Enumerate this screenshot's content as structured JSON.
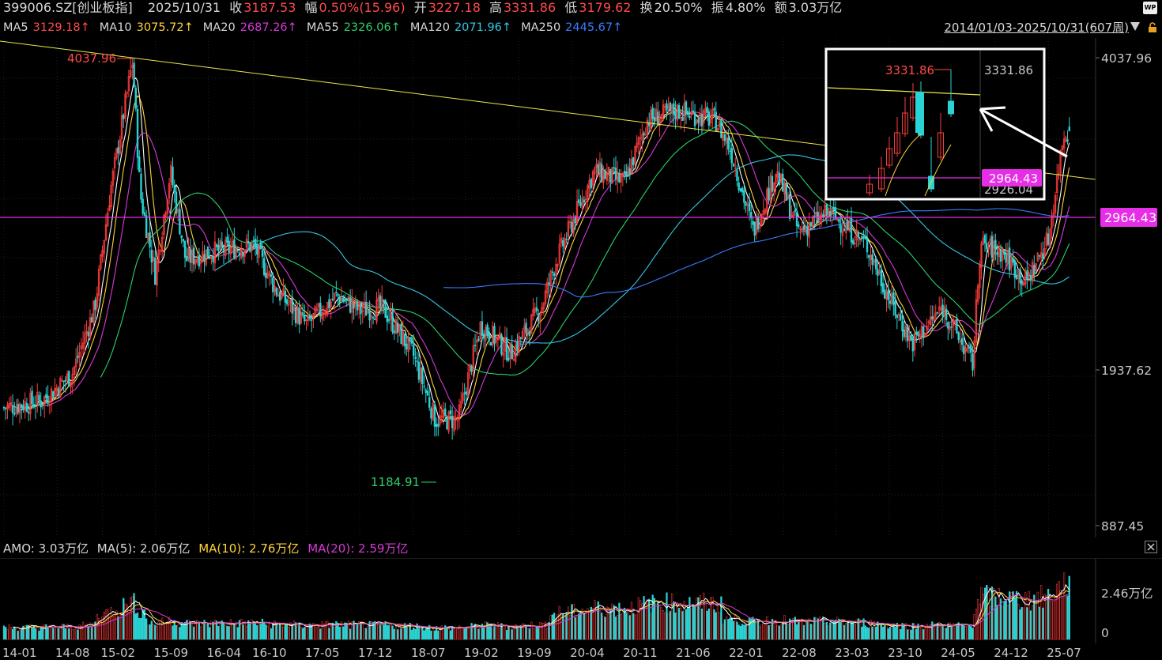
{
  "header": {
    "symbol": "399006.SZ[创业板指]",
    "date": "2025/10/31",
    "close_label": "收",
    "close_value": "3187.53",
    "change_label": "幅",
    "change_value": "0.50%(15.96)",
    "open_label": "开",
    "open_value": "3227.18",
    "high_label": "高",
    "high_value": "3331.86",
    "low_label": "低",
    "low_value": "3179.62",
    "turnover_label": "换",
    "turnover_value": "20.50%",
    "amplitude_label": "振",
    "amplitude_value": "4.80%",
    "amount_label": "额",
    "amount_value": "3.03万亿"
  },
  "ma_legend": [
    {
      "label": "MA5",
      "value": "3129.18↑",
      "color": "#ff4a4a"
    },
    {
      "label": "MA10",
      "value": "3075.72↑",
      "color": "#ffd23a"
    },
    {
      "label": "MA20",
      "value": "2687.26↑",
      "color": "#d63ad6"
    },
    {
      "label": "MA55",
      "value": "2326.06↑",
      "color": "#2bd06a"
    },
    {
      "label": "MA120",
      "value": "2071.96↑",
      "color": "#34c6e6"
    },
    {
      "label": "MA250",
      "value": "2445.67↑",
      "color": "#3a7bff"
    }
  ],
  "date_range": "2014/01/03-2025/10/31(607周)",
  "y_axis_labels": [
    "4037.96",
    "1937.62",
    "887.45"
  ],
  "price_tag": "2964.43",
  "peak_label": "4037.96",
  "trough_label": "1184.91",
  "inset": {
    "high_label": "3331.86",
    "axis_top": "3331.86",
    "axis_mid": "2964.43",
    "axis_bottom": "2926.04"
  },
  "volume": {
    "title": "AMO: 3.03万亿",
    "ma5": "MA(5): 2.06万亿",
    "ma10": "MA(10): 2.76万亿",
    "ma20": "MA(20): 2.59万亿",
    "axis_top": "2.46万亿",
    "axis_bottom": "0"
  },
  "x_ticks": [
    "14-01",
    "14-08",
    "15-02",
    "15-09",
    "16-04",
    "16-10",
    "17-05",
    "17-12",
    "18-07",
    "19-02",
    "19-09",
    "20-04",
    "20-11",
    "21-06",
    "22-01",
    "22-08",
    "23-03",
    "23-10",
    "24-05",
    "24-12",
    "25-07"
  ],
  "colors": {
    "up": "#ff3b3b",
    "down": "#2ad4d4",
    "trendline": "#e8e84a",
    "hline": "#e62ee6",
    "tag_bg": "#e62ee6"
  },
  "chart_data": {
    "type": "candlestick",
    "title": "",
    "period": "weekly",
    "ylim": [
      887.45,
      4037.96
    ],
    "annotations": {
      "high": 4037.96,
      "low": 1184.91,
      "horizontal_line": 2964.43
    },
    "close_path": [
      {
        "x": "2014-01",
        "y": 1300
      },
      {
        "x": "2014-06",
        "y": 1330
      },
      {
        "x": "2014-10",
        "y": 1450
      },
      {
        "x": "2015-01",
        "y": 1800
      },
      {
        "x": "2015-03",
        "y": 2600
      },
      {
        "x": "2015-06",
        "y": 4000
      },
      {
        "x": "2015-07",
        "y": 2600
      },
      {
        "x": "2015-09",
        "y": 2000
      },
      {
        "x": "2015-11",
        "y": 2800
      },
      {
        "x": "2016-01",
        "y": 2100
      },
      {
        "x": "2016-04",
        "y": 2150
      },
      {
        "x": "2016-10",
        "y": 2200
      },
      {
        "x": "2017-01",
        "y": 1900
      },
      {
        "x": "2017-05",
        "y": 1700
      },
      {
        "x": "2017-09",
        "y": 1870
      },
      {
        "x": "2017-12",
        "y": 1780
      },
      {
        "x": "2018-03",
        "y": 1800
      },
      {
        "x": "2018-07",
        "y": 1550
      },
      {
        "x": "2018-10",
        "y": 1250
      },
      {
        "x": "2019-01",
        "y": 1250
      },
      {
        "x": "2019-04",
        "y": 1700
      },
      {
        "x": "2019-08",
        "y": 1550
      },
      {
        "x": "2019-12",
        "y": 1800
      },
      {
        "x": "2020-02",
        "y": 2100
      },
      {
        "x": "2020-07",
        "y": 2800
      },
      {
        "x": "2020-11",
        "y": 2700
      },
      {
        "x": "2021-02",
        "y": 3300
      },
      {
        "x": "2021-06",
        "y": 3400
      },
      {
        "x": "2021-11",
        "y": 3300
      },
      {
        "x": "2022-01",
        "y": 3000
      },
      {
        "x": "2022-04",
        "y": 2300
      },
      {
        "x": "2022-07",
        "y": 2800
      },
      {
        "x": "2022-10",
        "y": 2300
      },
      {
        "x": "2023-02",
        "y": 2450
      },
      {
        "x": "2023-07",
        "y": 2200
      },
      {
        "x": "2023-10",
        "y": 1850
      },
      {
        "x": "2024-01",
        "y": 1600
      },
      {
        "x": "2024-05",
        "y": 1800
      },
      {
        "x": "2024-09",
        "y": 1500
      },
      {
        "x": "2024-10",
        "y": 2200
      },
      {
        "x": "2025-01",
        "y": 2150
      },
      {
        "x": "2025-04",
        "y": 1950
      },
      {
        "x": "2025-07",
        "y": 2250
      },
      {
        "x": "2025-09",
        "y": 3150
      },
      {
        "x": "2025-10",
        "y": 3187.53
      }
    ]
  }
}
